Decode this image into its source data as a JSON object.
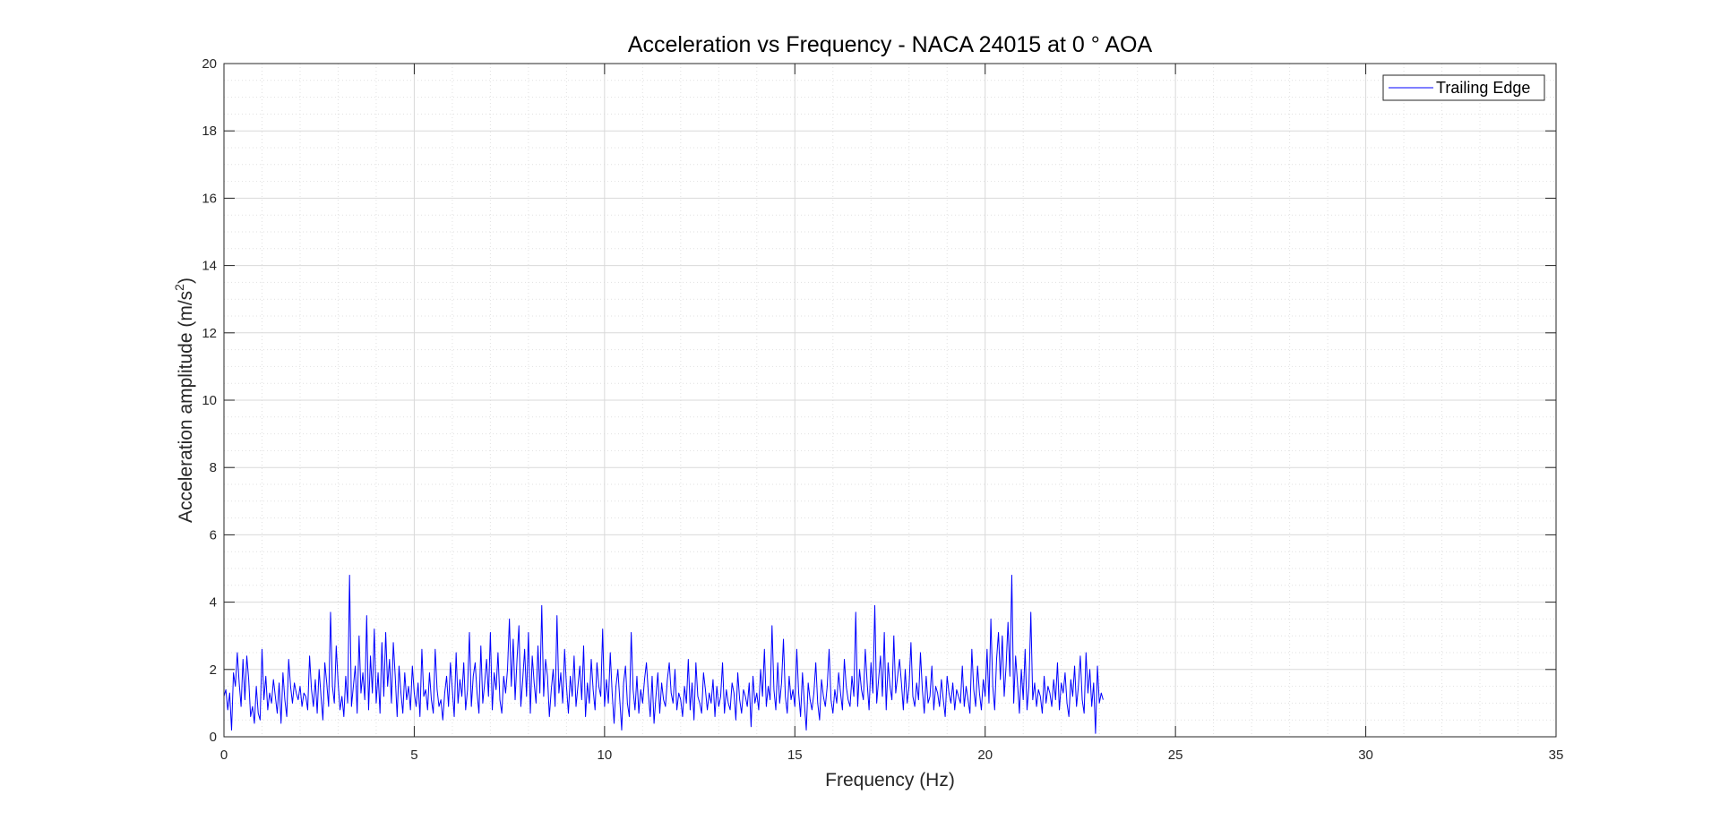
{
  "chart_data": {
    "type": "line",
    "title": "Acceleration vs Frequency - NACA 24015 at 0 ° AOA",
    "xlabel": "Frequency (Hz)",
    "ylabel_main": "Acceleration amplitude (m/s",
    "ylabel_sup": "2",
    "ylabel_end": ")",
    "xlim": [
      0,
      35
    ],
    "ylim": [
      0,
      20
    ],
    "xticks": [
      0,
      5,
      10,
      15,
      20,
      25,
      30,
      35
    ],
    "yticks": [
      0,
      2,
      4,
      6,
      8,
      10,
      12,
      14,
      16,
      18,
      20
    ],
    "xtick_labels": [
      "0",
      "5",
      "10",
      "15",
      "20",
      "25",
      "30",
      "35"
    ],
    "ytick_labels": [
      "0",
      "2",
      "4",
      "6",
      "8",
      "10",
      "12",
      "14",
      "16",
      "18",
      "20"
    ],
    "grid": true,
    "minor_grid": true,
    "legend_position": "top-right",
    "colors": {
      "series": "#0000ff",
      "axes": "#262626",
      "grid": "#e1e1e1",
      "background": "#ffffff"
    },
    "series": [
      {
        "name": "Trailing Edge",
        "x_start": 0,
        "x_step": 0.05,
        "initial_point": [
          0,
          20
        ],
        "y": [
          1.2,
          1.4,
          0.8,
          1.3,
          0.2,
          1.9,
          1.5,
          2.5,
          1.6,
          0.9,
          2.3,
          1.1,
          2.4,
          1.7,
          0.6,
          0.9,
          0.4,
          1.5,
          0.7,
          0.5,
          2.6,
          1.1,
          1.8,
          0.8,
          1.3,
          1.0,
          1.7,
          1.2,
          0.7,
          1.6,
          0.4,
          1.9,
          1.1,
          0.6,
          2.3,
          1.5,
          1.0,
          1.6,
          1.3,
          1.1,
          1.5,
          0.9,
          1.3,
          1.2,
          0.8,
          2.4,
          1.4,
          0.9,
          1.7,
          0.7,
          2.0,
          1.2,
          0.5,
          2.2,
          1.6,
          0.9,
          3.7,
          1.5,
          1.0,
          2.7,
          1.6,
          0.8,
          1.2,
          0.6,
          1.8,
          1.0,
          4.8,
          0.9,
          1.5,
          2.1,
          0.7,
          3.0,
          1.3,
          1.9,
          1.1,
          3.6,
          0.8,
          2.4,
          1.3,
          3.2,
          1.0,
          1.9,
          0.7,
          2.8,
          1.2,
          3.1,
          1.5,
          2.3,
          1.0,
          2.8,
          1.8,
          0.6,
          2.1,
          1.3,
          0.7,
          1.9,
          1.1,
          1.5,
          0.8,
          2.1,
          1.3,
          0.9,
          1.6,
          0.6,
          2.6,
          1.2,
          1.4,
          0.8,
          1.9,
          1.1,
          0.7,
          2.6,
          1.4,
          0.9,
          1.1,
          0.5,
          1.3,
          1.8,
          0.9,
          2.2,
          1.4,
          0.6,
          2.5,
          1.0,
          1.7,
          1.2,
          2.2,
          0.8,
          1.4,
          3.1,
          0.9,
          1.8,
          2.2,
          1.3,
          0.7,
          2.7,
          1.0,
          1.6,
          2.3,
          1.2,
          3.1,
          0.8,
          1.9,
          1.4,
          2.5,
          1.1,
          0.7,
          1.8,
          1.3,
          2.0,
          3.5,
          1.5,
          2.9,
          1.1,
          2.3,
          3.3,
          0.9,
          1.7,
          2.6,
          1.2,
          3.1,
          0.7,
          2.4,
          1.6,
          1.0,
          2.7,
          1.3,
          3.9,
          1.2,
          2.3,
          1.8,
          0.6,
          1.4,
          2.0,
          0.9,
          3.6,
          1.3,
          1.9,
          1.0,
          2.6,
          1.5,
          0.7,
          1.8,
          1.2,
          2.4,
          0.9,
          1.5,
          2.1,
          1.1,
          2.7,
          0.6,
          1.6,
          1.0,
          2.3,
          1.4,
          0.8,
          2.2,
          1.5,
          1.2,
          3.2,
          0.9,
          1.7,
          1.0,
          2.5,
          1.3,
          0.4,
          1.5,
          2.0,
          1.1,
          0.2,
          1.6,
          2.1,
          1.0,
          0.6,
          3.1,
          1.4,
          0.8,
          1.8,
          0.7,
          1.4,
          1.0,
          1.7,
          2.2,
          1.3,
          0.6,
          1.8,
          0.4,
          1.2,
          1.9,
          0.7,
          1.6,
          1.1,
          0.9,
          1.7,
          2.2,
          1.3,
          1.0,
          2.0,
          0.8,
          1.3,
          1.1,
          0.6,
          1.5,
          1.0,
          2.3,
          0.8,
          1.6,
          0.5,
          2.2,
          1.2,
          1.0,
          0.7,
          1.9,
          1.4,
          0.8,
          1.3,
          1.0,
          1.7,
          0.6,
          1.5,
          0.9,
          1.2,
          2.2,
          0.7,
          1.4,
          1.0,
          0.8,
          1.6,
          1.3,
          0.5,
          1.9,
          1.1,
          0.7,
          1.4,
          1.2,
          0.9,
          1.6,
          0.3,
          1.8,
          1.0,
          1.3,
          0.8,
          2.0,
          1.2,
          2.6,
          0.9,
          1.5,
          1.1,
          3.3,
          1.4,
          0.8,
          2.2,
          1.0,
          1.6,
          2.9,
          1.2,
          0.7,
          1.8,
          1.1,
          1.4,
          0.9,
          2.6,
          1.3,
          0.6,
          1.9,
          1.0,
          0.2,
          1.6,
          1.1,
          0.8,
          1.3,
          2.2,
          1.0,
          0.5,
          1.7,
          1.2,
          0.9,
          1.5,
          2.6,
          1.1,
          0.7,
          1.4,
          1.0,
          1.9,
          1.3,
          0.8,
          2.3,
          1.5,
          1.1,
          0.9,
          1.8,
          1.2,
          3.7,
          0.9,
          2.0,
          1.4,
          1.1,
          2.6,
          1.6,
          0.8,
          2.2,
          1.3,
          3.9,
          1.0,
          1.7,
          2.4,
          1.2,
          3.1,
          0.8,
          2.2,
          1.5,
          1.1,
          3.0,
          1.3,
          1.8,
          2.3,
          1.6,
          0.8,
          2.0,
          1.0,
          1.5,
          2.8,
          1.2,
          0.9,
          1.6,
          1.1,
          2.5,
          1.4,
          0.7,
          1.8,
          1.0,
          1.2,
          2.1,
          0.8,
          1.5,
          1.3,
          0.9,
          1.7,
          1.1,
          0.6,
          1.8,
          1.3,
          1.0,
          1.6,
          0.8,
          1.4,
          1.2,
          1.0,
          2.1,
          0.9,
          1.5,
          1.1,
          0.7,
          2.6,
          1.4,
          0.9,
          2.1,
          1.3,
          0.8,
          1.7,
          1.2,
          2.6,
          1.0,
          3.5,
          1.5,
          0.8,
          2.3,
          3.1,
          1.7,
          3.0,
          1.2,
          2.1,
          3.4,
          1.8,
          4.8,
          1.0,
          2.4,
          1.6,
          0.7,
          2.0,
          1.1,
          2.6,
          0.8,
          1.5,
          3.7,
          1.1,
          1.6,
          0.9,
          1.4,
          1.2,
          0.7,
          1.8,
          1.0,
          1.5,
          1.3,
          0.9,
          1.7,
          1.1,
          2.2,
          0.8,
          1.6,
          1.3,
          1.9,
          1.0,
          0.6,
          1.7,
          1.2,
          2.1,
          0.9,
          1.5,
          2.4,
          1.1,
          0.7,
          2.5,
          1.3,
          2.0,
          0.9,
          1.6,
          0.1,
          2.1,
          1.0,
          1.3,
          1.1
        ]
      }
    ]
  }
}
